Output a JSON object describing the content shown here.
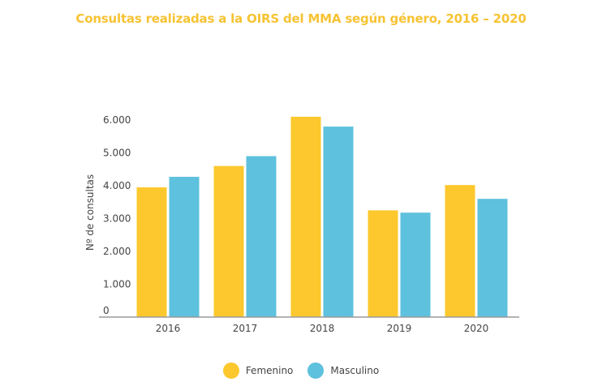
{
  "title": "Consultas realizadas a la OIRS del MMA según género, 2016 – 2020",
  "colors": {
    "title": "#f6c333",
    "femenino": "#fcc82d",
    "masculino": "#5ec1dd",
    "axis": "#9a9a9a"
  },
  "chart_data": {
    "type": "bar",
    "title": "Consultas realizadas a la OIRS del MMA según género, 2016 – 2020",
    "xlabel": "",
    "ylabel": "Nº de consultas",
    "categories": [
      "2016",
      "2017",
      "2018",
      "2019",
      "2020"
    ],
    "ylim": [
      0,
      6000
    ],
    "yticks": [
      0,
      1000,
      2000,
      3000,
      4000,
      5000,
      6000
    ],
    "ytick_labels": [
      "0",
      "1.000",
      "2.000",
      "3.000",
      "4.000",
      "5.000",
      "6.000"
    ],
    "grid": false,
    "legend_position": "bottom-center",
    "series": [
      {
        "name": "Femenino",
        "values": [
          3950,
          4600,
          6100,
          3250,
          4020
        ]
      },
      {
        "name": "Masculino",
        "values": [
          4270,
          4900,
          5800,
          3180,
          3600
        ]
      }
    ]
  }
}
